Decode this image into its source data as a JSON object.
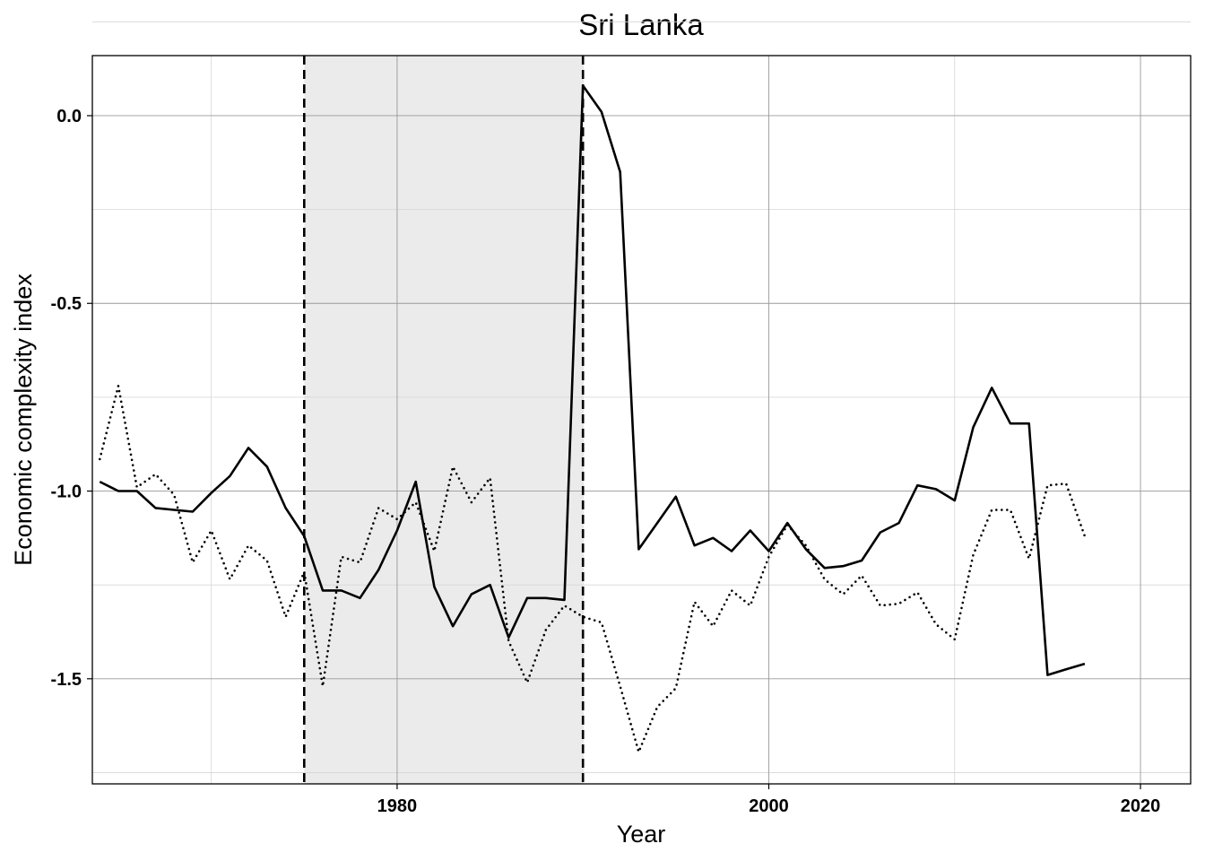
{
  "chart_data": {
    "type": "line",
    "title": "Sri Lanka",
    "xlabel": "Year",
    "ylabel": "Economic complexity index",
    "xlim": [
      1963.6,
      2022.7
    ],
    "ylim": [
      -1.78,
      0.16
    ],
    "x_ticks": [
      1980,
      2000,
      2020
    ],
    "x_tick_labels": [
      "1980",
      "2000",
      "2020"
    ],
    "y_ticks": [
      0.0,
      -0.5,
      -1.0,
      -1.5
    ],
    "y_tick_labels": [
      "0.0",
      "-0.5",
      "-1.0",
      "-1.5"
    ],
    "x_minor_grid": [
      1970,
      1990,
      2010
    ],
    "y_minor_grid": [
      0.25,
      -0.25,
      -0.75,
      -1.25,
      -1.75
    ],
    "grid": true,
    "shaded_region": {
      "x_start": 1975,
      "x_end": 1990,
      "color": "#ebebeb"
    },
    "reference_lines": [
      1975,
      1990
    ],
    "series": [
      {
        "style": "solid",
        "x": [
          1964,
          1965,
          1966,
          1967,
          1968,
          1969,
          1970,
          1971,
          1972,
          1973,
          1974,
          1975,
          1976,
          1977,
          1978,
          1979,
          1980,
          1981,
          1982,
          1983,
          1984,
          1985,
          1986,
          1987,
          1988,
          1989,
          1990,
          1991,
          1992,
          1993,
          1994,
          1995,
          1996,
          1997,
          1998,
          1999,
          2000,
          2001,
          2002,
          2003,
          2004,
          2005,
          2006,
          2007,
          2008,
          2009,
          2010,
          2011,
          2012,
          2013,
          2014,
          2015,
          2016,
          2017
        ],
        "y": [
          -0.975,
          -1.0,
          -1.0,
          -1.045,
          -1.05,
          -1.055,
          -1.005,
          -0.96,
          -0.885,
          -0.935,
          -1.045,
          -1.12,
          -1.265,
          -1.265,
          -1.285,
          -1.21,
          -1.105,
          -0.975,
          -1.255,
          -1.36,
          -1.275,
          -1.25,
          -1.39,
          -1.285,
          -1.285,
          -1.29,
          0.08,
          0.01,
          -0.15,
          -1.155,
          -1.085,
          -1.015,
          -1.145,
          -1.125,
          -1.16,
          -1.105,
          -1.16,
          -1.085,
          -1.155,
          -1.205,
          -1.2,
          -1.185,
          -1.11,
          -1.085,
          -0.985,
          -0.995,
          -1.025,
          -0.83,
          -0.725,
          -0.82,
          -0.82,
          -1.49,
          -1.475,
          -1.46
        ]
      },
      {
        "style": "dotted",
        "x": [
          1964,
          1965,
          1966,
          1967,
          1968,
          1969,
          1970,
          1971,
          1972,
          1973,
          1974,
          1975,
          1976,
          1977,
          1978,
          1979,
          1980,
          1981,
          1982,
          1983,
          1984,
          1985,
          1986,
          1987,
          1988,
          1989,
          1990,
          1991,
          1992,
          1993,
          1994,
          1995,
          1996,
          1997,
          1998,
          1999,
          2000,
          2001,
          2002,
          2003,
          2004,
          2005,
          2006,
          2007,
          2008,
          2009,
          2010,
          2011,
          2012,
          2013,
          2014,
          2015,
          2016,
          2017
        ],
        "y": [
          -0.915,
          -0.72,
          -0.99,
          -0.955,
          -1.01,
          -1.19,
          -1.105,
          -1.235,
          -1.145,
          -1.185,
          -1.335,
          -1.215,
          -1.52,
          -1.175,
          -1.19,
          -1.045,
          -1.075,
          -1.03,
          -1.16,
          -0.935,
          -1.03,
          -0.965,
          -1.4,
          -1.51,
          -1.37,
          -1.305,
          -1.335,
          -1.35,
          -1.52,
          -1.695,
          -1.575,
          -1.525,
          -1.295,
          -1.36,
          -1.265,
          -1.305,
          -1.175,
          -1.09,
          -1.145,
          -1.235,
          -1.275,
          -1.225,
          -1.305,
          -1.3,
          -1.27,
          -1.355,
          -1.395,
          -1.17,
          -1.05,
          -1.05,
          -1.18,
          -0.985,
          -0.98,
          -1.12
        ]
      }
    ]
  }
}
